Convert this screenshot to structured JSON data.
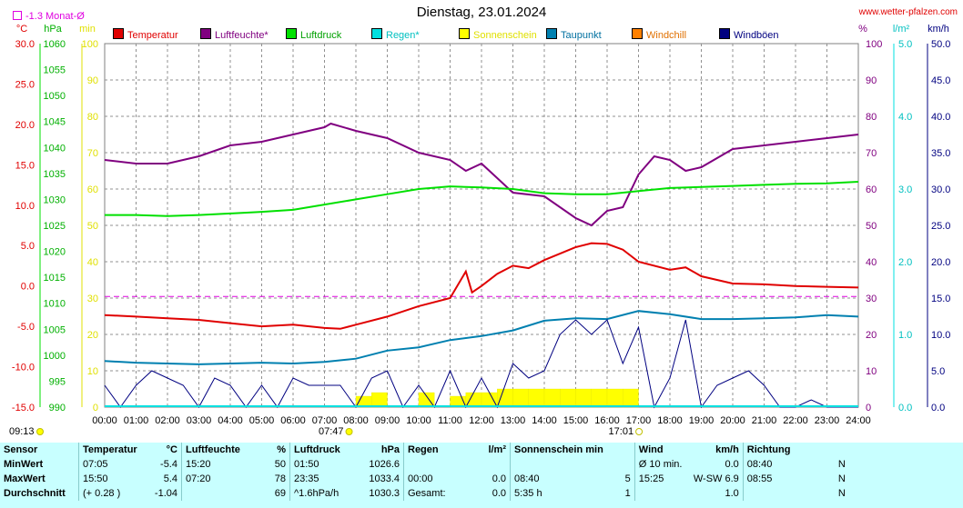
{
  "header": {
    "title": "Dienstag, 23.01.2024",
    "site": "www.wetter-pfalzen.com",
    "month_avg": "-1.3 Monat-Ø"
  },
  "units": {
    "celsius": "°C",
    "hpa": "hPa",
    "mm": "min",
    "percent": "%",
    "lm2": "l/m²",
    "kmh": "km/h"
  },
  "legend": [
    {
      "label": "Temperatur",
      "color": "#e00000"
    },
    {
      "label": "Luftfeuchte*",
      "color": "#800080"
    },
    {
      "label": "Luftdruck",
      "color": "#00e000"
    },
    {
      "label": "Regen*",
      "color": "#00e0e0"
    },
    {
      "label": "Sonnenschein",
      "color": "#ffff00"
    },
    {
      "label": "Taupunkt",
      "color": "#0080b0"
    },
    {
      "label": "Windchill",
      "color": "#ff8000"
    },
    {
      "label": "Windböen",
      "color": "#000080"
    }
  ],
  "chart_data": {
    "type": "line",
    "title": "Dienstag, 23.01.2024",
    "x_ticks": [
      "00:00",
      "01:00",
      "02:00",
      "03:00",
      "04:00",
      "05:00",
      "06:00",
      "07:00",
      "08:00",
      "09:00",
      "10:00",
      "11:00",
      "12:00",
      "13:00",
      "14:00",
      "15:00",
      "16:00",
      "17:00",
      "18:00",
      "19:00",
      "20:00",
      "21:00",
      "22:00",
      "23:00",
      "24:00"
    ],
    "sunrise": "07:47",
    "sunset": "17:01",
    "axes": {
      "temperature": {
        "unit": "°C",
        "range": [
          -15,
          30
        ],
        "ticks": [
          "30.0",
          "25.0",
          "20.0",
          "15.0",
          "10.0",
          "5.0",
          "0.0",
          "-5.0",
          "-10.0",
          "-15.0"
        ]
      },
      "pressure": {
        "unit": "hPa",
        "range": [
          990,
          1060
        ],
        "ticks": [
          "1060",
          "1055",
          "1050",
          "1045",
          "1040",
          "1035",
          "1030",
          "1025",
          "1020",
          "1015",
          "1010",
          "1005",
          "1000",
          "995",
          "990"
        ]
      },
      "sunshine": {
        "unit": "min",
        "range": [
          0,
          100
        ],
        "ticks": [
          "100",
          "90",
          "80",
          "70",
          "60",
          "50",
          "40",
          "30",
          "20",
          "10",
          "0"
        ]
      },
      "humidity": {
        "unit": "%",
        "range": [
          0,
          100
        ],
        "ticks": [
          "100",
          "90",
          "80",
          "70",
          "60",
          "50",
          "40",
          "30",
          "20",
          "10",
          "0"
        ]
      },
      "rain": {
        "unit": "l/m²",
        "range": [
          0,
          5
        ],
        "ticks": [
          "5.0",
          "4.0",
          "3.0",
          "2.0",
          "1.0",
          "0.0"
        ]
      },
      "wind": {
        "unit": "km/h",
        "range": [
          0,
          50
        ],
        "ticks": [
          "50.0",
          "45.0",
          "40.0",
          "35.0",
          "30.0",
          "25.0",
          "20.0",
          "15.0",
          "10.0",
          "5.0",
          "0.0"
        ]
      }
    },
    "month_avg_temperature": -1.3,
    "series": [
      {
        "name": "Temperatur",
        "axis": "temperature",
        "color": "#e00000",
        "x": [
          0,
          1,
          2,
          3,
          4,
          5,
          6,
          7,
          7.5,
          8,
          9,
          10,
          11,
          11.5,
          11.7,
          12,
          12.5,
          13,
          13.5,
          14,
          14.5,
          15,
          15.5,
          16,
          16.5,
          17,
          18,
          18.5,
          19,
          20,
          21,
          22,
          23,
          24
        ],
        "y": [
          -3.6,
          -3.8,
          -4.0,
          -4.2,
          -4.6,
          -5.0,
          -4.8,
          -5.2,
          -5.3,
          -4.8,
          -3.8,
          -2.5,
          -1.5,
          1.8,
          -0.8,
          0,
          1.5,
          2.5,
          2.2,
          3.2,
          4.0,
          4.8,
          5.3,
          5.2,
          4.5,
          3.0,
          2.0,
          2.3,
          1.2,
          0.3,
          0.2,
          0,
          -0.1,
          -0.2
        ]
      },
      {
        "name": "Luftfeuchte*",
        "axis": "humidity",
        "color": "#800080",
        "x": [
          0,
          1,
          2,
          3,
          4,
          5,
          6,
          7,
          7.2,
          8,
          9,
          10,
          11,
          11.5,
          12,
          12.5,
          13,
          14,
          15,
          15.5,
          16,
          16.5,
          17,
          17.5,
          18,
          18.5,
          19,
          20,
          21,
          22,
          23,
          24
        ],
        "y": [
          68,
          67,
          67,
          69,
          72,
          73,
          75,
          77,
          78,
          76,
          74,
          70,
          68,
          65,
          67,
          63,
          59,
          58,
          52,
          50,
          54,
          55,
          64,
          69,
          68,
          65,
          66,
          71,
          72,
          73,
          74,
          75
        ]
      },
      {
        "name": "Luftdruck",
        "axis": "pressure",
        "color": "#00e000",
        "x": [
          0,
          1,
          2,
          3,
          4,
          5,
          6,
          7,
          8,
          9,
          10,
          11,
          12,
          13,
          14,
          15,
          16,
          17,
          18,
          19,
          20,
          21,
          22,
          23,
          24
        ],
        "y": [
          1027,
          1027,
          1026.8,
          1027,
          1027.3,
          1027.6,
          1028,
          1029,
          1030,
          1031,
          1032,
          1032.5,
          1032.3,
          1032,
          1031.2,
          1031,
          1031,
          1031.6,
          1032.2,
          1032.4,
          1032.6,
          1032.8,
          1033,
          1033.1,
          1033.4
        ]
      },
      {
        "name": "Taupunkt",
        "axis": "temperature",
        "color": "#0080b0",
        "x": [
          0,
          1,
          2,
          3,
          4,
          5,
          6,
          7,
          8,
          9,
          10,
          11,
          12,
          13,
          14,
          15,
          16,
          17,
          18,
          19,
          20,
          21,
          22,
          23,
          24
        ],
        "y": [
          -9.3,
          -9.5,
          -9.6,
          -9.7,
          -9.6,
          -9.5,
          -9.6,
          -9.4,
          -9.0,
          -8.0,
          -7.6,
          -6.7,
          -6.2,
          -5.5,
          -4.3,
          -4.0,
          -4.1,
          -3.1,
          -3.5,
          -4.1,
          -4.1,
          -4.0,
          -3.9,
          -3.6,
          -3.8
        ]
      },
      {
        "name": "Windböen",
        "axis": "wind",
        "color": "#000080",
        "x": [
          0,
          0.5,
          1,
          1.5,
          2,
          2.5,
          3,
          3.5,
          4,
          4.5,
          5,
          5.5,
          6,
          6.5,
          7,
          7.5,
          8,
          8.5,
          9,
          9.5,
          10,
          10.5,
          11,
          11.5,
          12,
          12.5,
          13,
          13.5,
          14,
          14.5,
          15,
          15.5,
          16,
          16.5,
          17,
          17.5,
          18,
          18.5,
          19,
          19.5,
          20,
          20.5,
          21,
          21.5,
          22,
          22.5,
          23,
          23.5,
          24
        ],
        "y": [
          3,
          0,
          3,
          5,
          4,
          3,
          0,
          4,
          3,
          0,
          3,
          0,
          4,
          3,
          3,
          3,
          0,
          4,
          5,
          0,
          3,
          0,
          5,
          0,
          4,
          0,
          6,
          4,
          5,
          10,
          12,
          10,
          12,
          6,
          11,
          0,
          4,
          12,
          0,
          3,
          4,
          5,
          3,
          0,
          0,
          1,
          0,
          0,
          0
        ]
      },
      {
        "name": "Sonnenschein",
        "axis": "sunshine",
        "color": "#ffff00",
        "x": [
          7.5,
          8,
          8.5,
          9,
          9.5,
          10,
          10.5,
          11,
          11.5,
          12,
          12.5,
          13,
          13.5,
          14,
          14.5,
          15,
          15.5,
          16,
          16.5,
          17
        ],
        "y": [
          0,
          3,
          4,
          0,
          0,
          4,
          0,
          3,
          4,
          4,
          5,
          5,
          5,
          5,
          5,
          5,
          5,
          5,
          5,
          0
        ]
      },
      {
        "name": "Monat-Ø",
        "axis": "temperature",
        "color": "#e000e0",
        "x": [
          0,
          24
        ],
        "y": [
          -1.3,
          -1.3
        ]
      }
    ]
  },
  "stats": {
    "header": [
      "Sensor",
      "Temperatur",
      "°C",
      "Luftfeuchte",
      "%",
      "Luftdruck",
      "hPa",
      "Regen",
      "l/m²",
      "Sonnenschein min",
      "",
      "Wind",
      "km/h",
      "Richtung",
      ""
    ],
    "rows": [
      [
        "MinWert",
        "07:05",
        "-5.4",
        "15:20",
        "50",
        "01:50",
        "1026.6",
        "",
        "",
        "",
        "",
        "Ø 10 min.",
        "0.0",
        "08:40",
        "N"
      ],
      [
        "MaxWert",
        "15:50",
        "5.4",
        "07:20",
        "78",
        "23:35",
        "1033.4",
        "00:00",
        "0.0",
        "08:40",
        "5",
        "15:25",
        "W-SW 6.9",
        "08:55",
        "N"
      ],
      [
        "Durchschnitt",
        "(+ 0.28 )",
        "-1.04",
        "",
        "69",
        "^1.6hPa/h",
        "1030.3",
        "Gesamt:",
        "0.0",
        "5:35 h",
        "1",
        "",
        "1.0",
        "",
        "N"
      ]
    ]
  }
}
